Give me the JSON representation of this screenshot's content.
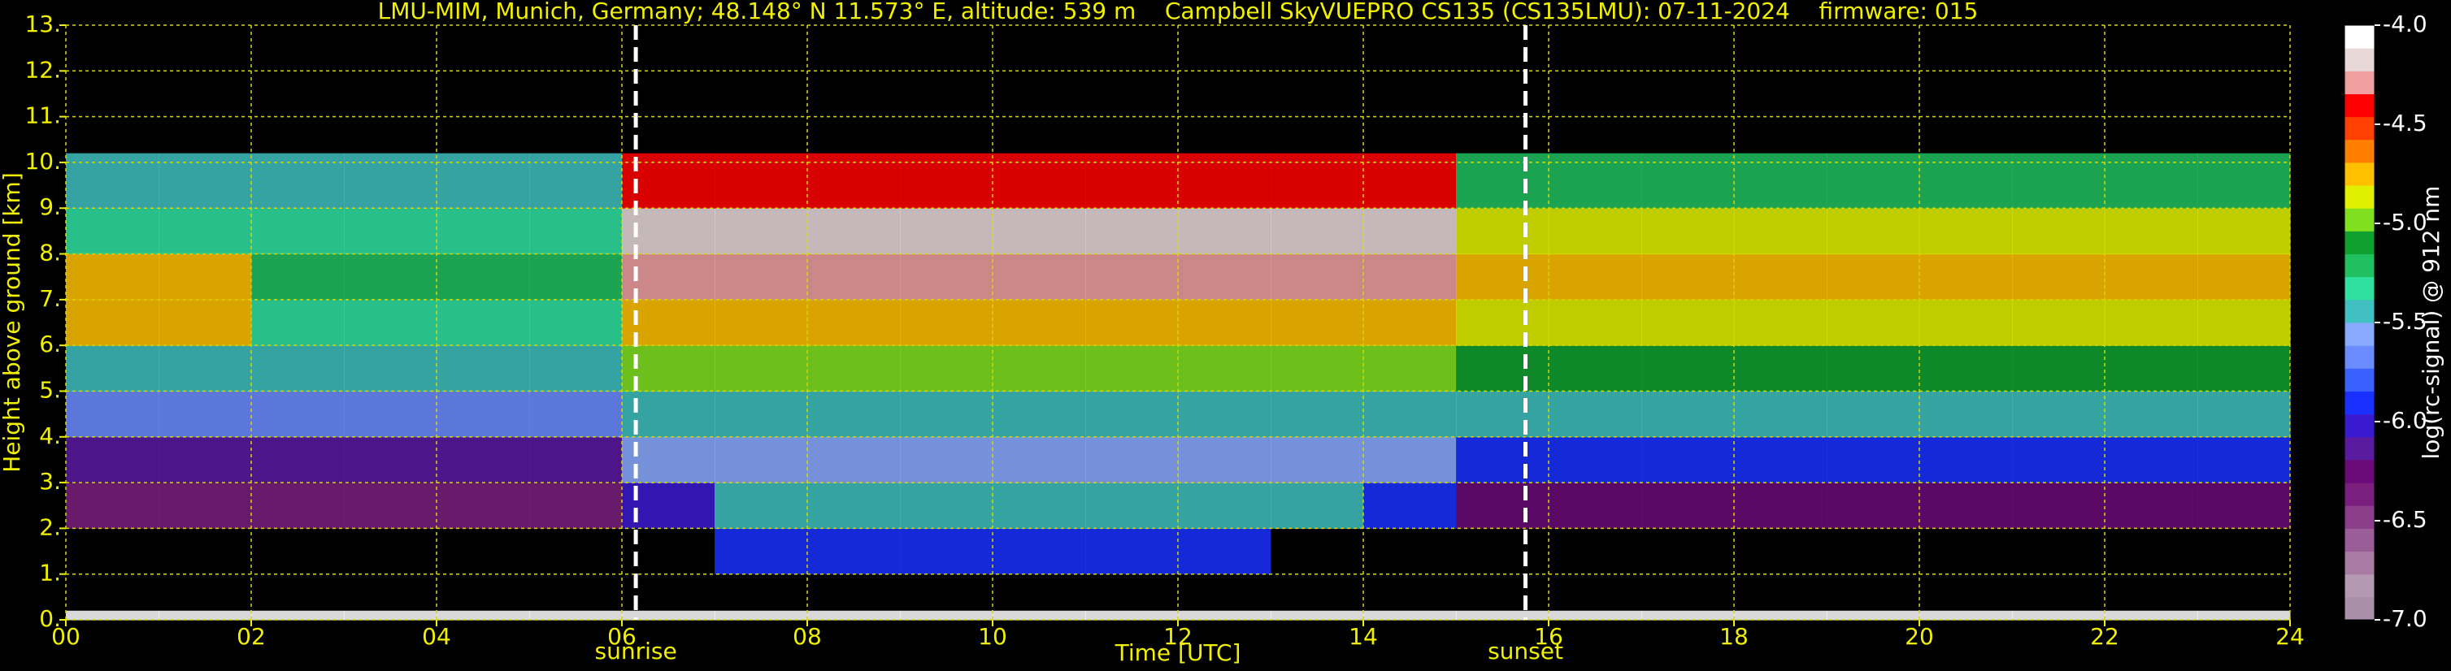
{
  "chart_data": {
    "type": "heatmap",
    "title": "LMU-MIM, Munich, Germany; 48.148° N 11.573° E, altitude: 539 m    Campbell SkyVUEPRO CS135 (CS135LMU): 07-11-2024    firmware: 015",
    "xlabel": "Time [UTC]",
    "ylabel": "Height above ground [km]",
    "colorbar_label": "log(rc-signal) @ 912 nm",
    "xlim": [
      0,
      24
    ],
    "ylim": [
      0,
      13
    ],
    "xticks": [
      {
        "value": 0,
        "label": "00"
      },
      {
        "value": 2,
        "label": "02"
      },
      {
        "value": 4,
        "label": "04"
      },
      {
        "value": 6,
        "label": "06"
      },
      {
        "value": 8,
        "label": "08"
      },
      {
        "value": 10,
        "label": "10"
      },
      {
        "value": 12,
        "label": "12"
      },
      {
        "value": 14,
        "label": "14"
      },
      {
        "value": 16,
        "label": "16"
      },
      {
        "value": 18,
        "label": "18"
      },
      {
        "value": 20,
        "label": "20"
      },
      {
        "value": 22,
        "label": "22"
      },
      {
        "value": 24,
        "label": "24"
      }
    ],
    "yticks": [
      {
        "value": 0,
        "label": "0."
      },
      {
        "value": 1,
        "label": "1."
      },
      {
        "value": 2,
        "label": "2."
      },
      {
        "value": 3,
        "label": "3."
      },
      {
        "value": 4,
        "label": "4."
      },
      {
        "value": 5,
        "label": "5."
      },
      {
        "value": 6,
        "label": "6."
      },
      {
        "value": 7,
        "label": "7."
      },
      {
        "value": 8,
        "label": "8."
      },
      {
        "value": 9,
        "label": "9."
      },
      {
        "value": 10,
        "label": "10."
      },
      {
        "value": 11,
        "label": "11."
      },
      {
        "value": 12,
        "label": "12."
      },
      {
        "value": 13,
        "label": "13."
      }
    ],
    "grid": true,
    "clim": [
      -7.0,
      -4.0
    ],
    "cticks": [
      {
        "value": -4.0,
        "label": "-4.0"
      },
      {
        "value": -4.5,
        "label": "-4.5"
      },
      {
        "value": -5.0,
        "label": "-5.0"
      },
      {
        "value": -5.5,
        "label": "-5.5"
      },
      {
        "value": -6.0,
        "label": "-6.0"
      },
      {
        "value": -6.5,
        "label": "-6.5"
      },
      {
        "value": -7.0,
        "label": "-7.0"
      }
    ],
    "colormap": [
      "#a990a8",
      "#b598b1",
      "#a77ba3",
      "#9a5d97",
      "#8b3f8b",
      "#7a1f7e",
      "#6a0a78",
      "#5a1aa0",
      "#3a1ad0",
      "#1a30ff",
      "#3a60ff",
      "#6a8cff",
      "#8aaaff",
      "#40c0c0",
      "#30e0a0",
      "#20c060",
      "#10a030",
      "#80e020",
      "#e0f000",
      "#ffc000",
      "#ff8000",
      "#ff4000",
      "#ff0000",
      "#f0a0a0",
      "#e8d8d8",
      "#ffffff"
    ],
    "x_edges": [
      0,
      1,
      2,
      3,
      4,
      5,
      6,
      7,
      8,
      9,
      10,
      11,
      12,
      13,
      14,
      15,
      16,
      17,
      18,
      19,
      20,
      21,
      22,
      23,
      24
    ],
    "y_edges": [
      0,
      0.2,
      1,
      2,
      3,
      4,
      5,
      6,
      7,
      8,
      9,
      10.2
    ],
    "z": [
      [
        -4.1,
        -4.1,
        -4.1,
        -4.1,
        -4.1,
        -4.1,
        -4.1,
        -4.1,
        -4.1,
        -4.1,
        -4.1,
        -4.1,
        -4.1,
        -4.1,
        -4.1,
        -4.1,
        -4.1,
        -4.1,
        -4.1,
        -4.1,
        -4.1,
        -4.1,
        -4.1,
        -4.1
      ],
      [
        null,
        null,
        null,
        null,
        null,
        null,
        null,
        null,
        null,
        null,
        null,
        null,
        null,
        null,
        null,
        null,
        null,
        null,
        null,
        null,
        null,
        null,
        null,
        null
      ],
      [
        null,
        null,
        null,
        null,
        null,
        null,
        null,
        -5.9,
        -5.9,
        -5.9,
        -5.9,
        -5.9,
        -5.9,
        null,
        null,
        null,
        null,
        null,
        null,
        null,
        null,
        null,
        null,
        null
      ],
      [
        -6.4,
        -6.4,
        -6.4,
        -6.4,
        -6.4,
        -6.4,
        -6.0,
        -5.5,
        -5.5,
        -5.5,
        -5.5,
        -5.5,
        -5.5,
        -5.5,
        -5.9,
        -6.3,
        -6.3,
        -6.3,
        -6.3,
        -6.3,
        -6.3,
        -6.3,
        -6.3,
        -6.3
      ],
      [
        -6.1,
        -6.1,
        -6.1,
        -6.1,
        -6.1,
        -6.1,
        -5.6,
        -5.6,
        -5.6,
        -5.6,
        -5.6,
        -5.6,
        -5.6,
        -5.6,
        -5.6,
        -5.9,
        -5.9,
        -5.9,
        -5.9,
        -5.9,
        -5.9,
        -5.9,
        -5.9,
        -5.9
      ],
      [
        -5.7,
        -5.7,
        -5.7,
        -5.7,
        -5.7,
        -5.7,
        -5.4,
        -5.4,
        -5.4,
        -5.4,
        -5.4,
        -5.4,
        -5.4,
        -5.4,
        -5.4,
        -5.5,
        -5.5,
        -5.5,
        -5.5,
        -5.5,
        -5.5,
        -5.5,
        -5.5,
        -5.5
      ],
      [
        -5.4,
        -5.4,
        -5.4,
        -5.4,
        -5.4,
        -5.4,
        -5.0,
        -5.0,
        -5.0,
        -5.0,
        -5.0,
        -5.0,
        -5.0,
        -5.0,
        -5.0,
        -5.1,
        -5.1,
        -5.1,
        -5.1,
        -5.1,
        -5.1,
        -5.1,
        -5.1,
        -5.1
      ],
      [
        -4.8,
        -4.8,
        -5.3,
        -5.3,
        -5.3,
        -5.3,
        -4.7,
        -4.7,
        -4.7,
        -4.7,
        -4.7,
        -4.7,
        -4.7,
        -4.7,
        -4.7,
        -4.9,
        -4.9,
        -4.9,
        -4.9,
        -4.9,
        -4.9,
        -4.9,
        -4.9,
        -4.9
      ],
      [
        -4.7,
        -4.7,
        -5.2,
        -5.2,
        -5.2,
        -5.2,
        -4.3,
        -4.3,
        -4.3,
        -4.3,
        -4.3,
        -4.3,
        -4.3,
        -4.3,
        -4.3,
        -4.8,
        -4.8,
        -4.8,
        -4.8,
        -4.8,
        -4.8,
        -4.8,
        -4.8,
        -4.8
      ],
      [
        -5.3,
        -5.3,
        -5.3,
        -5.3,
        -5.3,
        -5.3,
        -4.2,
        -4.2,
        -4.2,
        -4.2,
        -4.2,
        -4.2,
        -4.2,
        -4.2,
        -4.2,
        -4.9,
        -4.9,
        -4.9,
        -4.9,
        -4.9,
        -4.9,
        -4.9,
        -4.9,
        -4.9
      ],
      [
        -5.5,
        -5.5,
        -5.5,
        -5.5,
        -5.5,
        -5.5,
        -4.4,
        -4.4,
        -4.4,
        -4.4,
        -4.4,
        -4.4,
        -4.4,
        -4.4,
        -4.4,
        -5.2,
        -5.2,
        -5.2,
        -5.2,
        -5.2,
        -5.2,
        -5.2,
        -5.2,
        -5.2
      ]
    ],
    "annotations": [
      {
        "text": "sunrise",
        "x": 6.15
      },
      {
        "text": "sunset",
        "x": 15.75
      }
    ]
  }
}
